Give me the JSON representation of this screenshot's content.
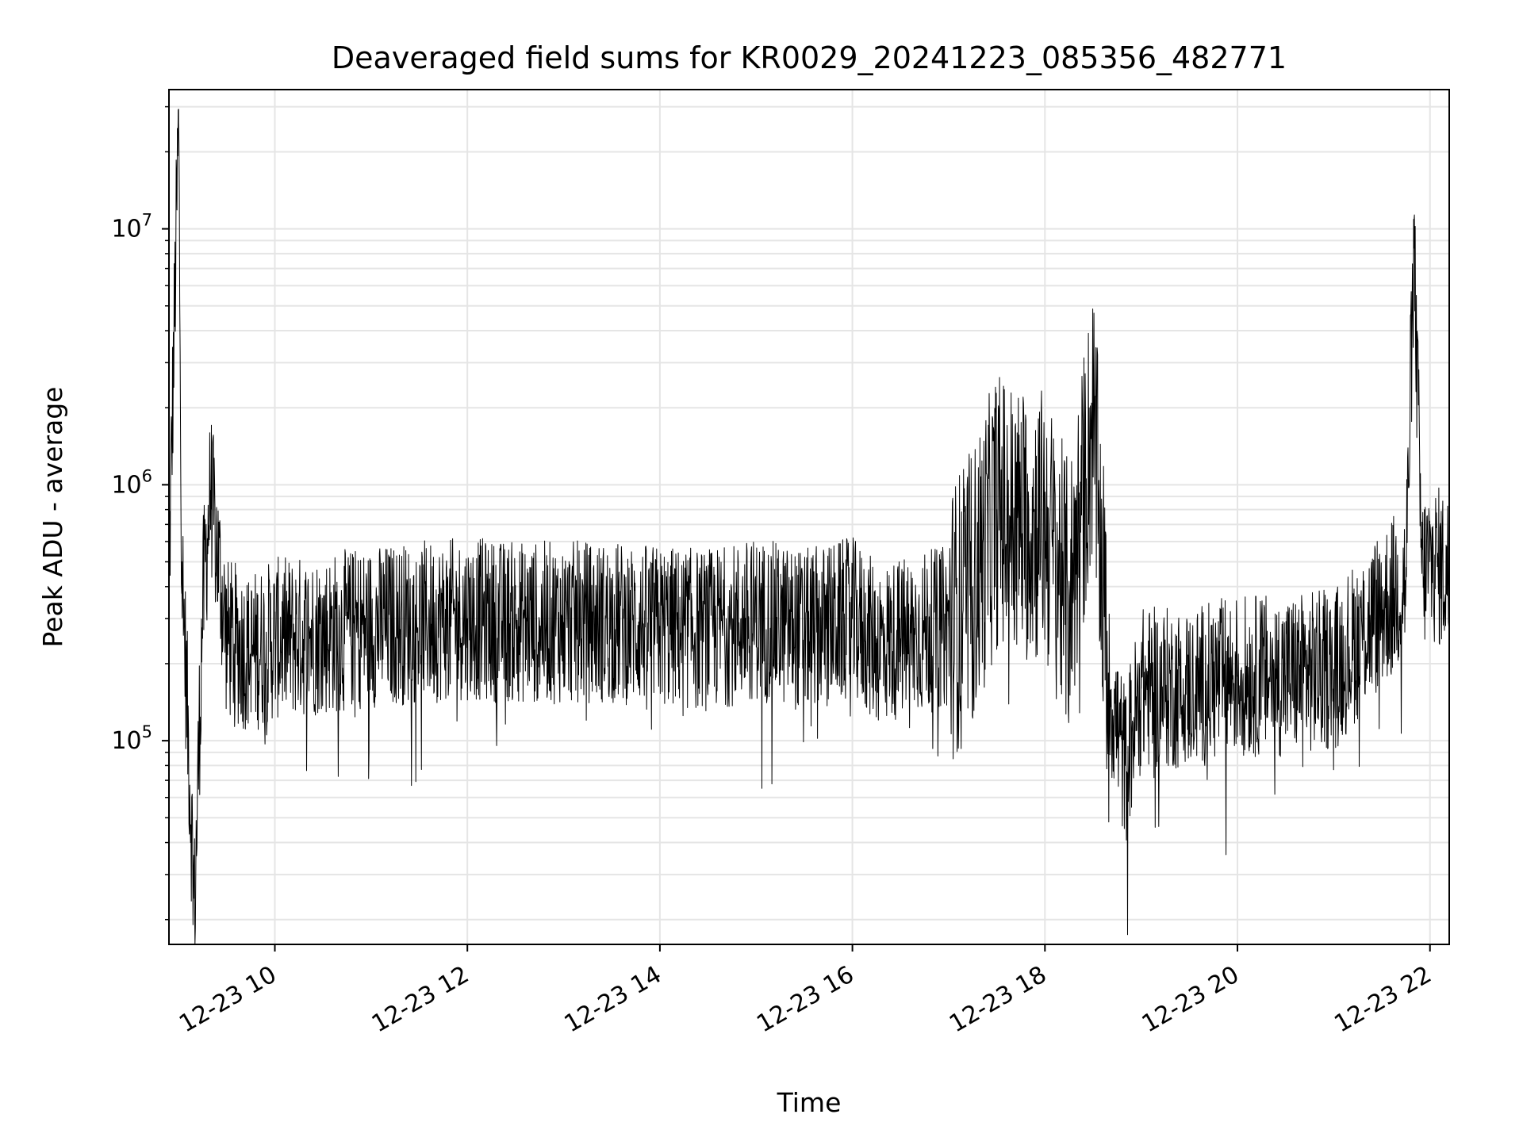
{
  "chart_data": {
    "type": "line",
    "title": "Deaveraged field sums for KR0029_20241223_085356_482771",
    "xlabel": "Time",
    "ylabel": "Peak ADU - average",
    "yscale": "log",
    "xlim": [
      "12-23 08:54",
      "12-23 22:12"
    ],
    "ylim": [
      16000,
      35000000
    ],
    "x_ticks": [
      "12-23 10",
      "12-23 12",
      "12-23 14",
      "12-23 16",
      "12-23 18",
      "12-23 20",
      "12-23 22"
    ],
    "y_ticks": [
      {
        "base": "10",
        "exp": "5",
        "value": 100000
      },
      {
        "base": "10",
        "exp": "6",
        "value": 1000000
      },
      {
        "base": "10",
        "exp": "7",
        "value": 10000000
      }
    ],
    "grid": true,
    "legend": "none",
    "line_color": "#000000",
    "grid_color": "#e5e5e5",
    "series": [
      {
        "x": [
          "12-23 08:54",
          "12-23 09:00",
          "12-23 09:02",
          "12-23 09:10",
          "12-23 09:15",
          "12-23 09:20",
          "12-23 09:30",
          "12-23 09:45",
          "12-23 10:00",
          "12-23 10:30",
          "12-23 11:00",
          "12-23 11:30",
          "12-23 12:00",
          "12-23 12:30",
          "12-23 13:00",
          "12-23 13:30",
          "12-23 14:00",
          "12-23 14:30",
          "12-23 15:00",
          "12-23 15:30",
          "12-23 16:00",
          "12-23 16:15",
          "12-23 16:30",
          "12-23 17:00",
          "12-23 17:15",
          "12-23 17:30",
          "12-23 17:45",
          "12-23 18:00",
          "12-23 18:15",
          "12-23 18:30",
          "12-23 18:40",
          "12-23 18:50",
          "12-23 19:00",
          "12-23 19:30",
          "12-23 20:00",
          "12-23 20:30",
          "12-23 21:00",
          "12-23 21:30",
          "12-23 21:45",
          "12-23 21:50",
          "12-23 21:55",
          "12-23 22:00",
          "12-23 22:12"
        ],
        "y": [
          430000,
          26000000,
          500000,
          22000,
          340000,
          950000,
          250000,
          220000,
          250000,
          260000,
          280000,
          290000,
          300000,
          290000,
          290000,
          290000,
          280000,
          270000,
          300000,
          270000,
          300000,
          240000,
          250000,
          280000,
          400000,
          800000,
          700000,
          700000,
          350000,
          1800000,
          160000,
          80000,
          160000,
          160000,
          180000,
          180000,
          190000,
          330000,
          420000,
          8400000,
          450000,
          500000,
          450000
        ]
      }
    ]
  }
}
